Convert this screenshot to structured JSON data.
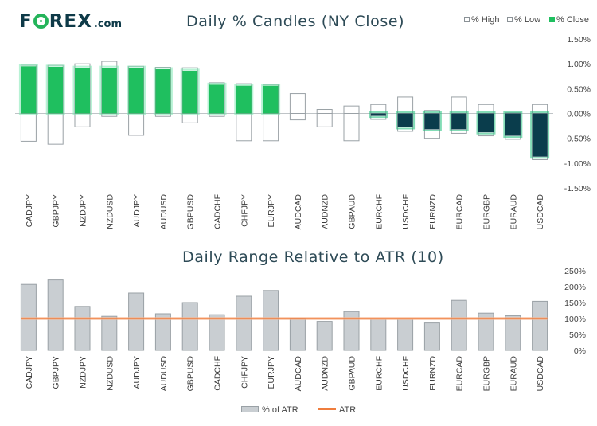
{
  "brand": {
    "logo_text": "FOREX",
    "logo_suffix": ".com"
  },
  "colors": {
    "green": "#1fbf5f",
    "navy": "#0a3d4c",
    "navy_glow": "#1ec07a",
    "green_glow": "#7de8b2",
    "grey_fill": "#c9ced2",
    "grey_border": "#9aa1a6",
    "atr_line": "#ef7d3d",
    "text": "#2d4a56"
  },
  "chart_data": [
    {
      "type": "bar",
      "title": "Daily % Candles (NY Close)",
      "categories": [
        "CADJPY",
        "GBPJPY",
        "NZDJPY",
        "NZDUSD",
        "AUDJPY",
        "AUDUSD",
        "GBPUSD",
        "CADCHF",
        "CHFJPY",
        "EURJPY",
        "AUDCAD",
        "AUDNZD",
        "GBPAUD",
        "EURCHF",
        "USDCHF",
        "EURNZD",
        "EURCAD",
        "EURGBP",
        "EURAUD",
        "USDCAD"
      ],
      "series": [
        {
          "name": "% High",
          "values": [
            0.97,
            0.97,
            1.0,
            1.05,
            0.95,
            0.93,
            0.92,
            0.62,
            0.6,
            0.58,
            0.4,
            0.08,
            0.15,
            0.18,
            0.33,
            0.06,
            0.33,
            0.18,
            0.01,
            0.18
          ]
        },
        {
          "name": "% Low",
          "values": [
            -0.56,
            -0.62,
            -0.27,
            -0.06,
            -0.44,
            -0.06,
            -0.19,
            -0.06,
            -0.55,
            -0.55,
            -0.13,
            -0.27,
            -0.55,
            -0.12,
            -0.36,
            -0.5,
            -0.4,
            -0.45,
            -0.52,
            -0.93
          ]
        },
        {
          "name": "% Close",
          "values": [
            0.95,
            0.94,
            0.92,
            0.92,
            0.92,
            0.89,
            0.86,
            0.58,
            0.56,
            0.56,
            0.0,
            0.0,
            0.0,
            -0.05,
            -0.28,
            -0.32,
            -0.32,
            -0.38,
            -0.45,
            -0.87
          ]
        }
      ],
      "legend": [
        "% High",
        "% Low",
        "% Close"
      ],
      "legend_position": "top-right",
      "yticks": [
        "1.50%",
        "1.00%",
        "0.50%",
        "0.00%",
        "-0.50%",
        "-1.00%",
        "-1.50%"
      ],
      "ylim": [
        -1.5,
        1.5
      ]
    },
    {
      "type": "bar",
      "title": "Daily Range Relative to ATR (10)",
      "categories": [
        "CADJPY",
        "GBPJPY",
        "NZDJPY",
        "NZDUSD",
        "AUDJPY",
        "AUDUSD",
        "GBPUSD",
        "CADCHF",
        "CHFJPY",
        "EURJPY",
        "AUDCAD",
        "AUDNZD",
        "GBPAUD",
        "EURCHF",
        "USDCHF",
        "EURNZD",
        "EURCAD",
        "EURGBP",
        "EURAUD",
        "USDCAD"
      ],
      "series": [
        {
          "name": "% of ATR",
          "values": [
            207,
            221,
            138,
            107,
            180,
            115,
            150,
            112,
            170,
            188,
            101,
            91,
            122,
            100,
            100,
            86,
            157,
            117,
            109,
            154
          ]
        },
        {
          "name": "ATR",
          "values": [
            100,
            100,
            100,
            100,
            100,
            100,
            100,
            100,
            100,
            100,
            100,
            100,
            100,
            100,
            100,
            100,
            100,
            100,
            100,
            100
          ]
        }
      ],
      "legend": [
        "% of ATR",
        "ATR"
      ],
      "legend_position": "bottom-center",
      "yticks": [
        "250%",
        "200%",
        "150%",
        "100%",
        "50%",
        "0%"
      ],
      "ylim": [
        0,
        250
      ]
    }
  ]
}
